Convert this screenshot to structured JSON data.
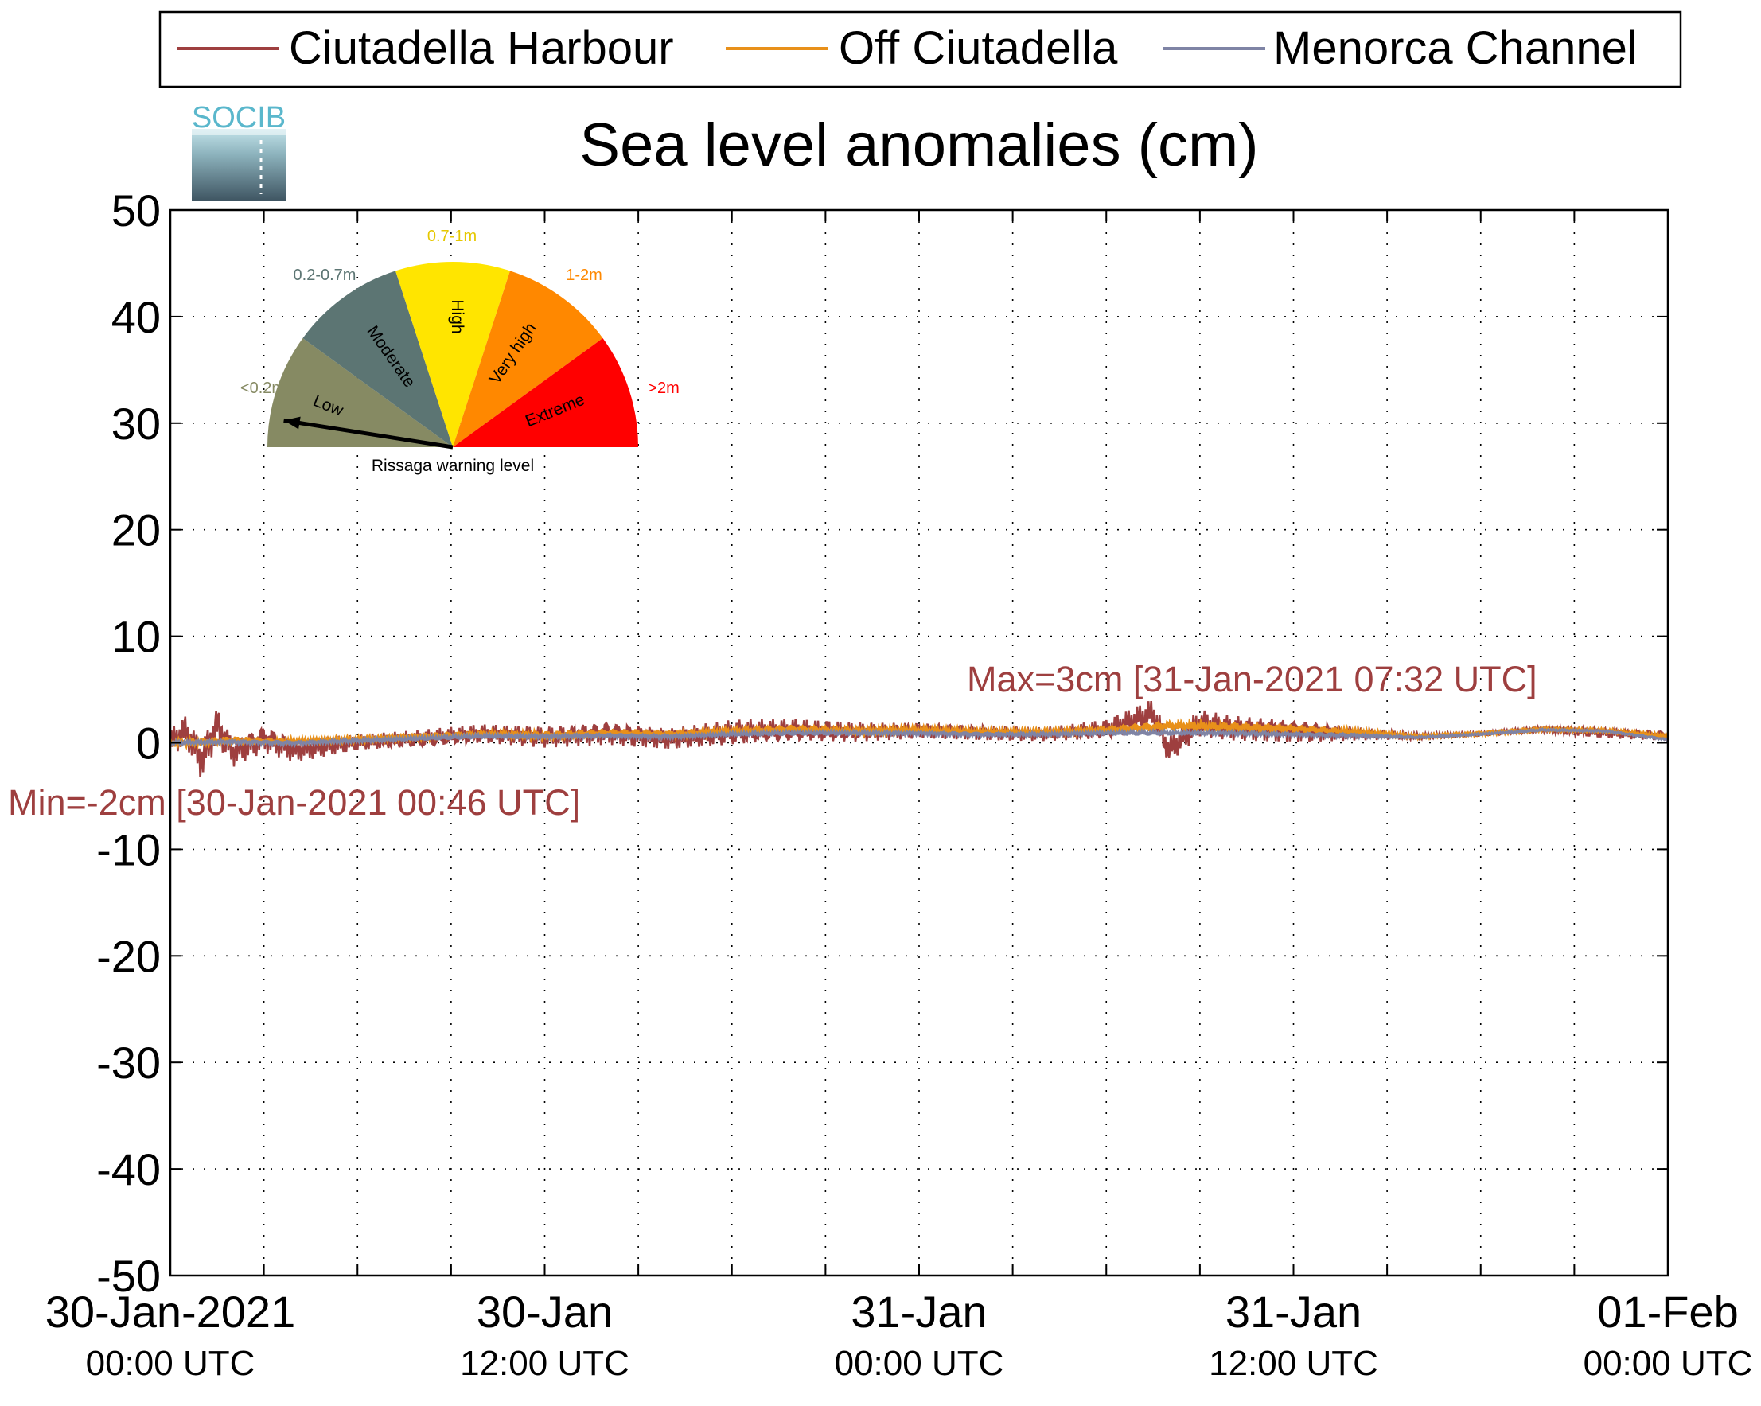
{
  "logo": {
    "text": "SOCIB"
  },
  "chart_data": {
    "type": "line",
    "title": "Sea level anomalies (cm)",
    "xlabel": "",
    "ylabel": "",
    "ylim": [
      -50,
      50
    ],
    "yticks": [
      -50,
      -40,
      -30,
      -20,
      -10,
      0,
      10,
      20,
      30,
      40,
      50
    ],
    "xlim": [
      "2021-01-30 00:00",
      "2021-02-01 00:00"
    ],
    "xticks": [
      {
        "date": "30-Jan-2021",
        "time": "00:00 UTC",
        "hour": 0
      },
      {
        "date": "30-Jan",
        "time": "12:00 UTC",
        "hour": 12
      },
      {
        "date": "31-Jan",
        "time": "00:00 UTC",
        "hour": 24
      },
      {
        "date": "31-Jan",
        "time": "12:00 UTC",
        "hour": 36
      },
      {
        "date": "01-Feb",
        "time": "00:00 UTC",
        "hour": 48
      }
    ],
    "grid": true,
    "legend_position": "top",
    "series": [
      {
        "name": "Ciutadella Harbour",
        "color": "#9e3f3f",
        "x_hours": [
          0,
          0.5,
          1,
          1.5,
          2,
          3,
          4,
          6,
          8,
          10,
          12,
          14,
          16,
          18,
          20,
          22,
          24,
          26,
          28,
          30,
          31.5,
          32,
          33,
          34,
          36,
          38,
          40,
          42,
          44,
          46,
          48
        ],
        "y": [
          0,
          1.2,
          -1.6,
          1.8,
          -0.8,
          0.5,
          -0.6,
          0,
          0.3,
          0.8,
          0.6,
          1,
          0.4,
          0.9,
          1.1,
          1,
          1.2,
          1,
          0.8,
          1.2,
          2.6,
          -0.8,
          1.8,
          1.4,
          1.2,
          0.9,
          0.6,
          0.8,
          1.2,
          0.9,
          0.7
        ],
        "oscillation_amplitude": [
          1.5,
          1.6,
          2.0,
          2.0,
          1.5,
          1.4,
          1.3,
          0.8,
          0.9,
          1.0,
          1.1,
          1.2,
          1.1,
          1.3,
          1.2,
          1.0,
          0.8,
          0.8,
          0.7,
          1.0,
          1.6,
          1.4,
          1.4,
          1.3,
          1.2,
          0.7,
          0.3,
          0.2,
          0.3,
          0.5,
          0.5
        ]
      },
      {
        "name": "Off Ciutadella",
        "color": "#e8901a",
        "x_hours": [
          0,
          2,
          4,
          6,
          8,
          10,
          12,
          14,
          16,
          18,
          20,
          22,
          24,
          26,
          28,
          30,
          32,
          34,
          36,
          38,
          40,
          42,
          44,
          46,
          48
        ],
        "y": [
          0,
          0.2,
          0.1,
          0.3,
          0.6,
          0.8,
          0.7,
          0.9,
          0.8,
          1.1,
          1.3,
          1.1,
          1.2,
          1.0,
          1.0,
          1.2,
          1.6,
          1.5,
          1.3,
          1.0,
          0.6,
          0.9,
          1.3,
          1.1,
          0.6
        ],
        "oscillation_amplitude": [
          0.4,
          0.4,
          0.3,
          0.3,
          0.3,
          0.4,
          0.4,
          0.4,
          0.4,
          0.4,
          0.4,
          0.4,
          0.3,
          0.3,
          0.3,
          0.4,
          0.5,
          0.5,
          0.4,
          0.3,
          0.2,
          0.2,
          0.2,
          0.2,
          0.2
        ]
      },
      {
        "name": "Menorca Channel",
        "color": "#7f84a5",
        "x_hours": [
          0,
          2,
          4,
          6,
          8,
          10,
          12,
          14,
          16,
          18,
          20,
          22,
          24,
          26,
          28,
          30,
          32,
          34,
          36,
          38,
          40,
          42,
          44,
          46,
          48
        ],
        "y": [
          0,
          0.1,
          0,
          0.2,
          0.4,
          0.6,
          0.6,
          0.7,
          0.6,
          0.8,
          0.9,
          0.9,
          0.9,
          0.8,
          0.8,
          0.9,
          0.9,
          0.9,
          0.8,
          0.7,
          0.5,
          0.8,
          1.2,
          1.1,
          0.3
        ],
        "oscillation_amplitude": [
          0.2,
          0.2,
          0.2,
          0.2,
          0.2,
          0.2,
          0.2,
          0.2,
          0.2,
          0.2,
          0.2,
          0.2,
          0.2,
          0.2,
          0.2,
          0.2,
          0.2,
          0.2,
          0.2,
          0.2,
          0.1,
          0.1,
          0.1,
          0.1,
          0.1
        ]
      }
    ],
    "annotations": [
      {
        "text": "Max=3cm [31-Jan-2021 07:32 UTC]",
        "color": "#9e3f3f"
      },
      {
        "text": "Min=-2cm [30-Jan-2021 00:46 UTC]",
        "color": "#9e3f3f"
      }
    ],
    "gauge": {
      "caption": "Rissaga warning level",
      "needle_level": "Low",
      "levels": [
        {
          "name": "Low",
          "range": "<0.2m",
          "color": "#868a63"
        },
        {
          "name": "Moderate",
          "range": "0.2-0.7m",
          "color": "#5c7573"
        },
        {
          "name": "High",
          "range": "0.7-1m",
          "color": "#ffe500"
        },
        {
          "name": "Very high",
          "range": "1-2m",
          "color": "#ff8800"
        },
        {
          "name": "Extreme",
          "range": ">2m",
          "color": "#ff0000"
        }
      ]
    }
  }
}
